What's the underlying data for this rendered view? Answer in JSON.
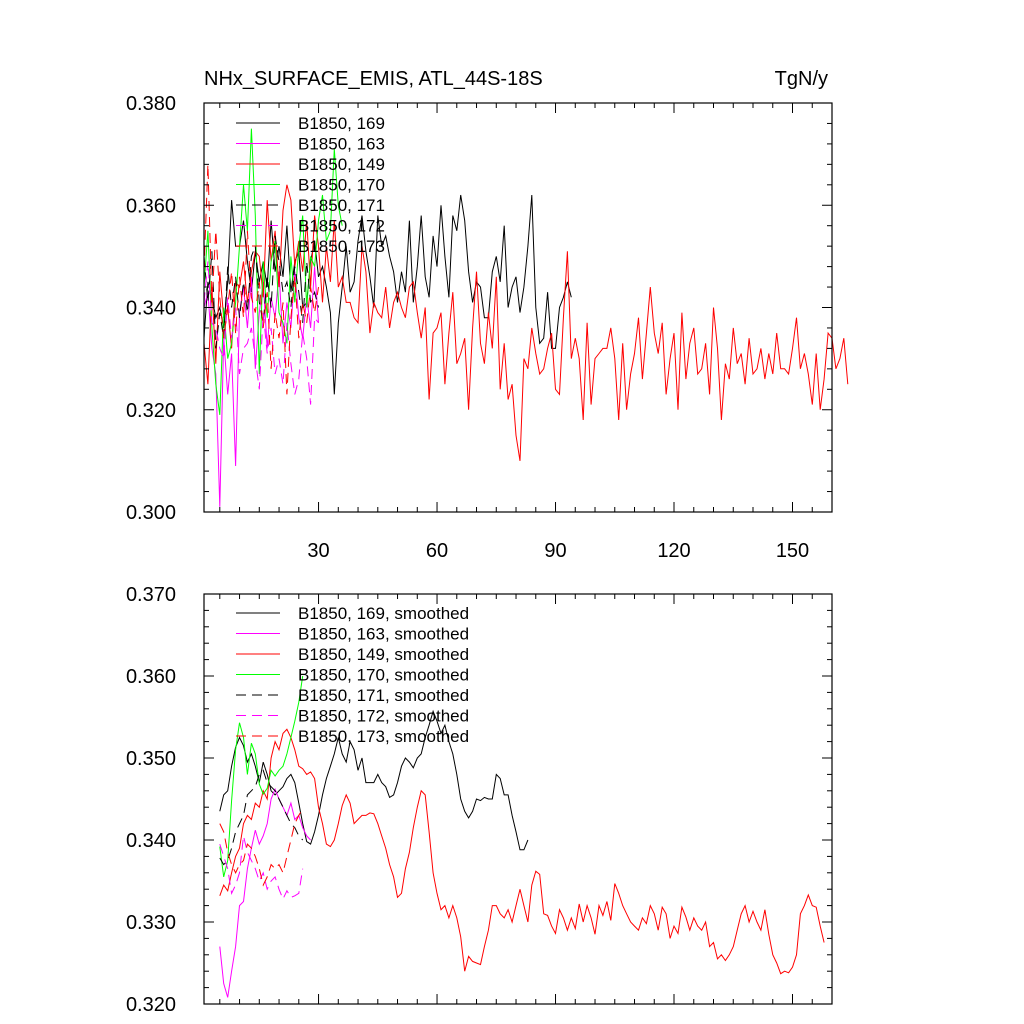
{
  "header": {
    "title": "NHx_SURFACE_EMIS, ATL_44S-18S",
    "units": "TgN/y"
  },
  "colors": {
    "black": "#000000",
    "magenta": "#ff00ff",
    "red": "#ff0000",
    "green": "#00ff00"
  },
  "chart_data": [
    {
      "type": "line",
      "title": "NHx_SURFACE_EMIS, ATL_44S-18S",
      "units": "TgN/y",
      "xlim": [
        1,
        160
      ],
      "ylim": [
        0.3,
        0.38
      ],
      "xticks": [
        30,
        60,
        90,
        120,
        150
      ],
      "xtick_labels": [
        "30",
        "60",
        "90",
        "120",
        "150"
      ],
      "yticks": [
        0.3,
        0.32,
        0.34,
        0.36,
        0.38
      ],
      "ytick_labels": [
        "0.300",
        "0.320",
        "0.340",
        "0.360",
        "0.380"
      ],
      "legend_position": "top-left",
      "series": [
        {
          "name": "B1850, 169",
          "color": "black",
          "dash": "solid",
          "x_start": 1,
          "values": [
            0.334,
            0.345,
            0.342,
            0.338,
            0.34,
            0.336,
            0.345,
            0.361,
            0.352,
            0.352,
            0.357,
            0.349,
            0.343,
            0.351,
            0.345,
            0.349,
            0.344,
            0.357,
            0.347,
            0.352,
            0.346,
            0.356,
            0.343,
            0.349,
            0.351,
            0.34,
            0.341,
            0.349,
            0.353,
            0.346,
            0.348,
            0.344,
            0.339,
            0.323,
            0.337,
            0.344,
            0.352,
            0.343,
            0.345,
            0.353,
            0.358,
            0.351,
            0.346,
            0.34,
            0.358,
            0.352,
            0.354,
            0.35,
            0.347,
            0.341,
            0.347,
            0.343,
            0.357,
            0.341,
            0.348,
            0.358,
            0.346,
            0.342,
            0.354,
            0.348,
            0.36,
            0.35,
            0.342,
            0.358,
            0.355,
            0.362,
            0.357,
            0.347,
            0.341,
            0.345,
            0.344,
            0.338,
            0.338,
            0.347,
            0.35,
            0.345,
            0.356,
            0.34,
            0.344,
            0.346,
            0.339,
            0.344,
            0.352,
            0.362,
            0.34,
            0.333,
            0.334,
            0.343,
            0.332,
            0.332,
            0.34,
            0.342,
            0.345,
            0.342
          ]
        },
        {
          "name": "B1850, 163",
          "color": "magenta",
          "dash": "solid",
          "x_start": 1,
          "values": [
            0.34,
            0.343,
            0.332,
            0.327,
            0.301,
            0.334,
            0.323,
            0.331,
            0.309,
            0.339,
            0.344,
            0.336,
            0.346,
            0.328,
            0.339,
            0.345,
            0.332,
            0.342,
            0.338,
            0.347,
            0.333,
            0.341,
            0.336,
            0.347,
            0.338,
            0.334,
            0.342,
            0.336,
            0.348,
            0.337
          ]
        },
        {
          "name": "B1850, 149",
          "color": "red",
          "dash": "solid",
          "x_start": 1,
          "values": [
            0.333,
            0.325,
            0.344,
            0.329,
            0.347,
            0.338,
            0.34,
            0.332,
            0.345,
            0.344,
            0.349,
            0.341,
            0.347,
            0.351,
            0.35,
            0.342,
            0.361,
            0.349,
            0.355,
            0.344,
            0.359,
            0.364,
            0.361,
            0.348,
            0.353,
            0.347,
            0.357,
            0.344,
            0.358,
            0.352,
            0.341,
            0.352,
            0.345,
            0.357,
            0.344,
            0.346,
            0.341,
            0.341,
            0.338,
            0.337,
            0.352,
            0.347,
            0.335,
            0.341,
            0.339,
            0.338,
            0.344,
            0.336,
            0.341,
            0.343,
            0.34,
            0.338,
            0.344,
            0.345,
            0.339,
            0.334,
            0.34,
            0.322,
            0.335,
            0.336,
            0.339,
            0.325,
            0.335,
            0.343,
            0.329,
            0.331,
            0.334,
            0.32,
            0.336,
            0.347,
            0.333,
            0.329,
            0.339,
            0.332,
            0.346,
            0.324,
            0.333,
            0.322,
            0.325,
            0.315,
            0.31,
            0.33,
            0.328,
            0.336,
            0.331,
            0.327,
            0.328,
            0.332,
            0.335,
            0.324,
            0.323,
            0.338,
            0.351,
            0.33,
            0.334,
            0.33,
            0.318,
            0.337,
            0.321,
            0.33,
            0.331,
            0.332,
            0.332,
            0.336,
            0.33,
            0.318,
            0.333,
            0.32,
            0.327,
            0.331,
            0.338,
            0.326,
            0.335,
            0.344,
            0.335,
            0.331,
            0.337,
            0.323,
            0.33,
            0.335,
            0.32,
            0.339,
            0.326,
            0.333,
            0.336,
            0.327,
            0.328,
            0.333,
            0.323,
            0.34,
            0.332,
            0.318,
            0.329,
            0.326,
            0.336,
            0.329,
            0.331,
            0.325,
            0.334,
            0.327,
            0.328,
            0.332,
            0.326,
            0.331,
            0.327,
            0.335,
            0.328,
            0.328,
            0.327,
            0.332,
            0.338,
            0.328,
            0.331,
            0.327,
            0.321,
            0.331,
            0.32,
            0.326,
            0.335,
            0.334,
            0.328,
            0.33,
            0.334,
            0.325
          ]
        },
        {
          "name": "B1850, 170",
          "color": "green",
          "dash": "solid",
          "x_start": 1,
          "values": [
            0.344,
            0.355,
            0.336,
            0.325,
            0.319,
            0.34,
            0.33,
            0.333,
            0.341,
            0.352,
            0.364,
            0.355,
            0.375,
            0.358,
            0.327,
            0.349,
            0.338,
            0.349,
            0.353,
            0.339,
            0.337,
            0.333,
            0.35,
            0.341,
            0.352,
            0.358,
            0.34,
            0.35,
            0.348,
            0.357,
            0.362,
            0.353,
            0.355,
            0.371,
            0.36,
            0.356
          ]
        },
        {
          "name": "B1850, 171",
          "color": "black",
          "dash": "dashed",
          "x_start": 1,
          "values": [
            0.35,
            0.341,
            0.351,
            0.332,
            0.339,
            0.334,
            0.348,
            0.34,
            0.346,
            0.338,
            0.345,
            0.339,
            0.35,
            0.352,
            0.341,
            0.337,
            0.346,
            0.34,
            0.354,
            0.349,
            0.343,
            0.345,
            0.34,
            0.348,
            0.343,
            0.337,
            0.349,
            0.341,
            0.343,
            0.34
          ]
        },
        {
          "name": "B1850, 172",
          "color": "magenta",
          "dash": "dashed",
          "x_start": 1,
          "values": [
            0.341,
            0.349,
            0.337,
            0.336,
            0.332,
            0.33,
            0.342,
            0.334,
            0.34,
            0.327,
            0.332,
            0.333,
            0.336,
            0.33,
            0.324,
            0.339,
            0.331,
            0.336,
            0.327,
            0.33,
            0.325,
            0.337,
            0.329,
            0.323,
            0.326,
            0.335,
            0.33,
            0.321,
            0.338,
            0.337
          ]
        },
        {
          "name": "B1850, 173",
          "color": "red",
          "dash": "dashed",
          "x_start": 1,
          "values": [
            0.347,
            0.368,
            0.341,
            0.355,
            0.342,
            0.334,
            0.34,
            0.347,
            0.335,
            0.346,
            0.338,
            0.355,
            0.342,
            0.339,
            0.345,
            0.336,
            0.343,
            0.328,
            0.339,
            0.334,
            0.341,
            0.323,
            0.338,
            0.346,
            0.334,
            0.341,
            0.337,
            0.344,
            0.339,
            0.344
          ]
        }
      ]
    },
    {
      "type": "line",
      "title": "",
      "xlim": [
        1,
        160
      ],
      "ylim": [
        0.32,
        0.37
      ],
      "xticks": [
        30,
        60,
        90,
        120,
        150
      ],
      "xtick_labels": [],
      "yticks": [
        0.32,
        0.33,
        0.34,
        0.35,
        0.36,
        0.37
      ],
      "ytick_labels": [
        "0.320",
        "0.330",
        "0.340",
        "0.350",
        "0.360",
        "0.370"
      ],
      "legend_position": "top-left",
      "series": [
        {
          "name": "B1850, 169, smoothed",
          "color": "black",
          "dash": "solid",
          "x_start": 5,
          "values": [
            0.3435,
            0.3455,
            0.346,
            0.349,
            0.3513,
            0.3525,
            0.3515,
            0.3495,
            0.3505,
            0.349,
            0.347,
            0.3495,
            0.348,
            0.346,
            0.3455,
            0.346,
            0.3465,
            0.3475,
            0.348,
            0.347,
            0.3445,
            0.342,
            0.3398,
            0.3395,
            0.341,
            0.343,
            0.3455,
            0.3475,
            0.349,
            0.3505,
            0.3525,
            0.3505,
            0.3495,
            0.352,
            0.351,
            0.3485,
            0.35,
            0.347,
            0.347,
            0.347,
            0.348,
            0.347,
            0.3465,
            0.3452,
            0.3455,
            0.347,
            0.349,
            0.35,
            0.3495,
            0.3488,
            0.35,
            0.3505,
            0.3525,
            0.354,
            0.3557,
            0.3545,
            0.353,
            0.354,
            0.352,
            0.3505,
            0.348,
            0.345,
            0.3435,
            0.3427,
            0.3435,
            0.345,
            0.3448,
            0.3452,
            0.345,
            0.345,
            0.348,
            0.3475,
            0.3455,
            0.3455,
            0.343,
            0.341,
            0.3388,
            0.3388,
            0.34
          ]
        },
        {
          "name": "B1850, 163, smoothed",
          "color": "magenta",
          "dash": "solid",
          "x_start": 5,
          "values": [
            0.327,
            0.3225,
            0.3208,
            0.324,
            0.327,
            0.332,
            0.3325,
            0.3365,
            0.339,
            0.3412,
            0.3395,
            0.3405,
            0.342,
            0.345,
            0.3462,
            0.345,
            0.344,
            0.343,
            0.3445,
            0.3425,
            0.343,
            0.3415,
            0.3405,
            0.34
          ]
        },
        {
          "name": "B1850, 149, smoothed",
          "color": "red",
          "dash": "solid",
          "x_start": 5,
          "values": [
            0.3332,
            0.3345,
            0.3338,
            0.336,
            0.338,
            0.339,
            0.342,
            0.343,
            0.3425,
            0.3445,
            0.344,
            0.346,
            0.345,
            0.35,
            0.352,
            0.351,
            0.353,
            0.3535,
            0.3525,
            0.351,
            0.349,
            0.3487,
            0.348,
            0.3483,
            0.3475,
            0.344,
            0.342,
            0.3395,
            0.3392,
            0.34,
            0.342,
            0.3442,
            0.3455,
            0.3445,
            0.342,
            0.3425,
            0.343,
            0.343,
            0.3433,
            0.3432,
            0.342,
            0.3405,
            0.339,
            0.337,
            0.3355,
            0.333,
            0.3335,
            0.3365,
            0.3385,
            0.3415,
            0.344,
            0.346,
            0.3455,
            0.341,
            0.336,
            0.3335,
            0.3315,
            0.332,
            0.3305,
            0.332,
            0.3305,
            0.3282,
            0.324,
            0.3258,
            0.3252,
            0.325,
            0.3248,
            0.327,
            0.329,
            0.332,
            0.332,
            0.331,
            0.3305,
            0.3315,
            0.33,
            0.332,
            0.334,
            0.332,
            0.33,
            0.3345,
            0.3362,
            0.3358,
            0.331,
            0.3308,
            0.3295,
            0.3286,
            0.3315,
            0.3305,
            0.329,
            0.3305,
            0.3292,
            0.3322,
            0.33,
            0.332,
            0.3305,
            0.3285,
            0.332,
            0.3308,
            0.3325,
            0.3302,
            0.3347,
            0.3335,
            0.332,
            0.331,
            0.33,
            0.3295,
            0.329,
            0.3305,
            0.3298,
            0.332,
            0.331,
            0.329,
            0.3318,
            0.331,
            0.328,
            0.3295,
            0.3286,
            0.3318,
            0.3306,
            0.329,
            0.3305,
            0.3295,
            0.329,
            0.33,
            0.327,
            0.3275,
            0.3255,
            0.326,
            0.3253,
            0.326,
            0.327,
            0.329,
            0.331,
            0.332,
            0.33,
            0.3313,
            0.33,
            0.329,
            0.3315,
            0.3285,
            0.326,
            0.325,
            0.3237,
            0.324,
            0.3238,
            0.3245,
            0.326,
            0.331,
            0.332,
            0.3333,
            0.332,
            0.3318,
            0.3295,
            0.3275
          ]
        },
        {
          "name": "B1850, 170, smoothed",
          "color": "green",
          "dash": "solid",
          "x_start": 5,
          "values": [
            0.3392,
            0.3355,
            0.3375,
            0.3448,
            0.351,
            0.3543,
            0.3525,
            0.348,
            0.3518,
            0.3505,
            0.3468,
            0.3456,
            0.3463,
            0.3485,
            0.3478,
            0.3485,
            0.349,
            0.3505,
            0.3525,
            0.3545,
            0.3568,
            0.36
          ]
        },
        {
          "name": "B1850, 171, smoothed",
          "color": "black",
          "dash": "dashed",
          "x_start": 5,
          "values": [
            0.3378,
            0.337,
            0.3375,
            0.339,
            0.341,
            0.342,
            0.343,
            0.3455,
            0.346,
            0.3465,
            0.348,
            0.3485,
            0.347,
            0.3465,
            0.346,
            0.345,
            0.344,
            0.343,
            0.342,
            0.3415,
            0.3405,
            0.34
          ]
        },
        {
          "name": "B1850, 172, smoothed",
          "color": "magenta",
          "dash": "dashed",
          "x_start": 5,
          "values": [
            0.3395,
            0.338,
            0.3365,
            0.3335,
            0.3345,
            0.336,
            0.3405,
            0.3385,
            0.3375,
            0.3365,
            0.335,
            0.336,
            0.334,
            0.335,
            0.3355,
            0.334,
            0.3328,
            0.3338,
            0.333,
            0.3332,
            0.3335,
            0.3365
          ]
        },
        {
          "name": "B1850, 173, smoothed",
          "color": "red",
          "dash": "dashed",
          "x_start": 5,
          "values": [
            0.342,
            0.341,
            0.3385,
            0.337,
            0.336,
            0.337,
            0.3375,
            0.3395,
            0.339,
            0.338,
            0.3365,
            0.3345,
            0.3355,
            0.337,
            0.3365,
            0.337,
            0.336,
            0.338,
            0.34,
            0.342,
            0.343,
            0.3438
          ]
        }
      ]
    }
  ]
}
